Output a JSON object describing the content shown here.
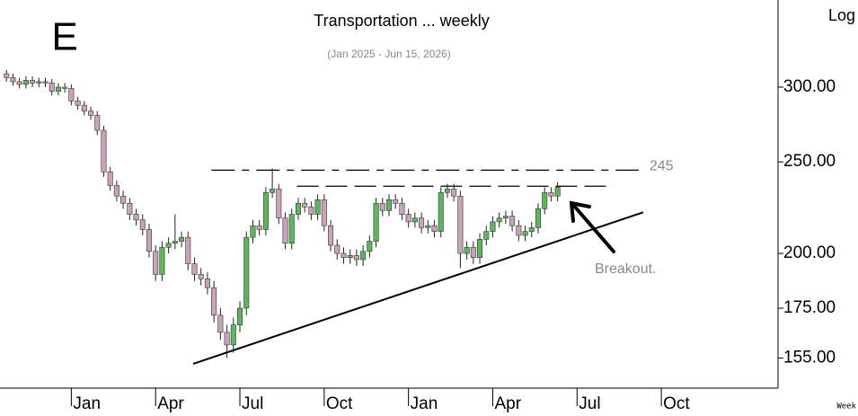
{
  "chart_data": {
    "type": "candlestick",
    "letter": "E",
    "title": "Transportation ... weekly",
    "subtitle": "(Jan 2025 - Jun 15, 2026)",
    "scale_label": "Log",
    "period_label": "Week",
    "annotation": "Breakout.",
    "log_scale": true,
    "up_color": "#5cb85c",
    "down_color": "#c9a3b6",
    "xlim": [
      -1,
      119
    ],
    "xticks": [
      {
        "value": 10,
        "label": "Jan"
      },
      {
        "value": 23,
        "label": "Apr"
      },
      {
        "value": 36,
        "label": "Jul"
      },
      {
        "value": 49,
        "label": "Oct"
      },
      {
        "value": 62,
        "label": "Jan"
      },
      {
        "value": 75,
        "label": "Apr"
      },
      {
        "value": 88,
        "label": "Jul"
      },
      {
        "value": 101,
        "label": "Oct"
      }
    ],
    "ylim": [
      144,
      371
    ],
    "yticks": [
      {
        "value": 155,
        "label": "155.00"
      },
      {
        "value": 175,
        "label": "175.00"
      },
      {
        "value": 200,
        "label": "200.00"
      },
      {
        "value": 250,
        "label": "250.00"
      },
      {
        "value": 300,
        "label": "300.00"
      }
    ],
    "x": [
      0,
      1,
      2,
      3,
      4,
      5,
      6,
      7,
      8,
      9,
      10,
      11,
      12,
      13,
      14,
      15,
      16,
      17,
      18,
      19,
      20,
      21,
      22,
      23,
      24,
      25,
      26,
      27,
      28,
      29,
      30,
      31,
      32,
      33,
      34,
      35,
      36,
      37,
      38,
      39,
      40,
      41,
      42,
      43,
      44,
      45,
      46,
      47,
      48,
      49,
      50,
      51,
      52,
      53,
      54,
      55,
      56,
      57,
      58,
      59,
      60,
      61,
      62,
      63,
      64,
      65,
      66,
      67,
      68,
      69,
      70,
      71,
      72,
      73,
      74,
      75,
      76,
      77,
      78,
      79,
      80,
      81,
      82,
      83,
      84,
      85
    ],
    "open": [
      310,
      307,
      304,
      302,
      305,
      303,
      304,
      303,
      297,
      300,
      299,
      290,
      287,
      283,
      280,
      270,
      244,
      236,
      230,
      226,
      220,
      217,
      212,
      201,
      190,
      203,
      205,
      206,
      208,
      195,
      190,
      188,
      184,
      172,
      165,
      160,
      168,
      175,
      208,
      214,
      212,
      232,
      234,
      218,
      205,
      220,
      226,
      224,
      220,
      228,
      214,
      204,
      200,
      198,
      199,
      197,
      201,
      206,
      226,
      222,
      228,
      226,
      220,
      216,
      218,
      213,
      214,
      211,
      232,
      234,
      230,
      200,
      203,
      198,
      207,
      211,
      216,
      218,
      219,
      214,
      209,
      211,
      213,
      223,
      232,
      230
    ],
    "high": [
      313,
      310,
      307,
      308,
      308,
      307,
      307,
      306,
      303,
      303,
      302,
      293,
      290,
      286,
      283,
      273,
      247,
      239,
      233,
      229,
      223,
      220,
      215,
      204,
      206,
      208,
      220,
      211,
      211,
      198,
      193,
      191,
      187,
      175,
      168,
      171,
      178,
      211,
      217,
      217,
      235,
      246,
      237,
      221,
      223,
      229,
      229,
      227,
      231,
      231,
      217,
      207,
      203,
      202,
      202,
      204,
      209,
      229,
      229,
      231,
      231,
      229,
      223,
      221,
      221,
      217,
      217,
      235,
      237,
      237,
      233,
      206,
      206,
      210,
      214,
      219,
      221,
      222,
      222,
      217,
      214,
      216,
      226,
      235,
      235,
      238
    ],
    "low": [
      304,
      301,
      299,
      299,
      300,
      300,
      300,
      294,
      294,
      296,
      287,
      284,
      280,
      277,
      267,
      241,
      233,
      227,
      223,
      217,
      214,
      209,
      198,
      187,
      187,
      200,
      202,
      203,
      192,
      187,
      185,
      181,
      169,
      162,
      155,
      157,
      165,
      172,
      205,
      209,
      209,
      229,
      215,
      202,
      202,
      217,
      221,
      217,
      217,
      211,
      201,
      197,
      195,
      195,
      194,
      194,
      198,
      203,
      219,
      219,
      223,
      217,
      213,
      213,
      210,
      210,
      208,
      208,
      229,
      227,
      193,
      197,
      195,
      195,
      204,
      208,
      213,
      215,
      211,
      206,
      206,
      208,
      210,
      220,
      227,
      227
    ],
    "close": [
      307,
      304,
      302,
      305,
      303,
      304,
      303,
      297,
      300,
      299,
      290,
      287,
      283,
      280,
      270,
      244,
      236,
      230,
      226,
      220,
      217,
      212,
      201,
      190,
      203,
      205,
      206,
      208,
      195,
      190,
      188,
      184,
      172,
      165,
      160,
      168,
      175,
      208,
      214,
      212,
      232,
      234,
      218,
      205,
      220,
      226,
      224,
      220,
      228,
      214,
      204,
      200,
      198,
      199,
      197,
      201,
      206,
      226,
      222,
      228,
      226,
      220,
      216,
      218,
      213,
      214,
      211,
      232,
      234,
      230,
      200,
      203,
      198,
      207,
      211,
      216,
      218,
      219,
      214,
      209,
      211,
      213,
      223,
      232,
      230,
      235
    ],
    "hlines": [
      {
        "value": 245,
        "label": "245",
        "x": [
          31.6,
          97.5
        ]
      },
      {
        "value": 235.6,
        "x": [
          44.8,
          93.6
        ]
      }
    ],
    "trendline": {
      "x": [
        28.8,
        98.2
      ],
      "y": [
        152.8,
        221.1
      ]
    }
  }
}
